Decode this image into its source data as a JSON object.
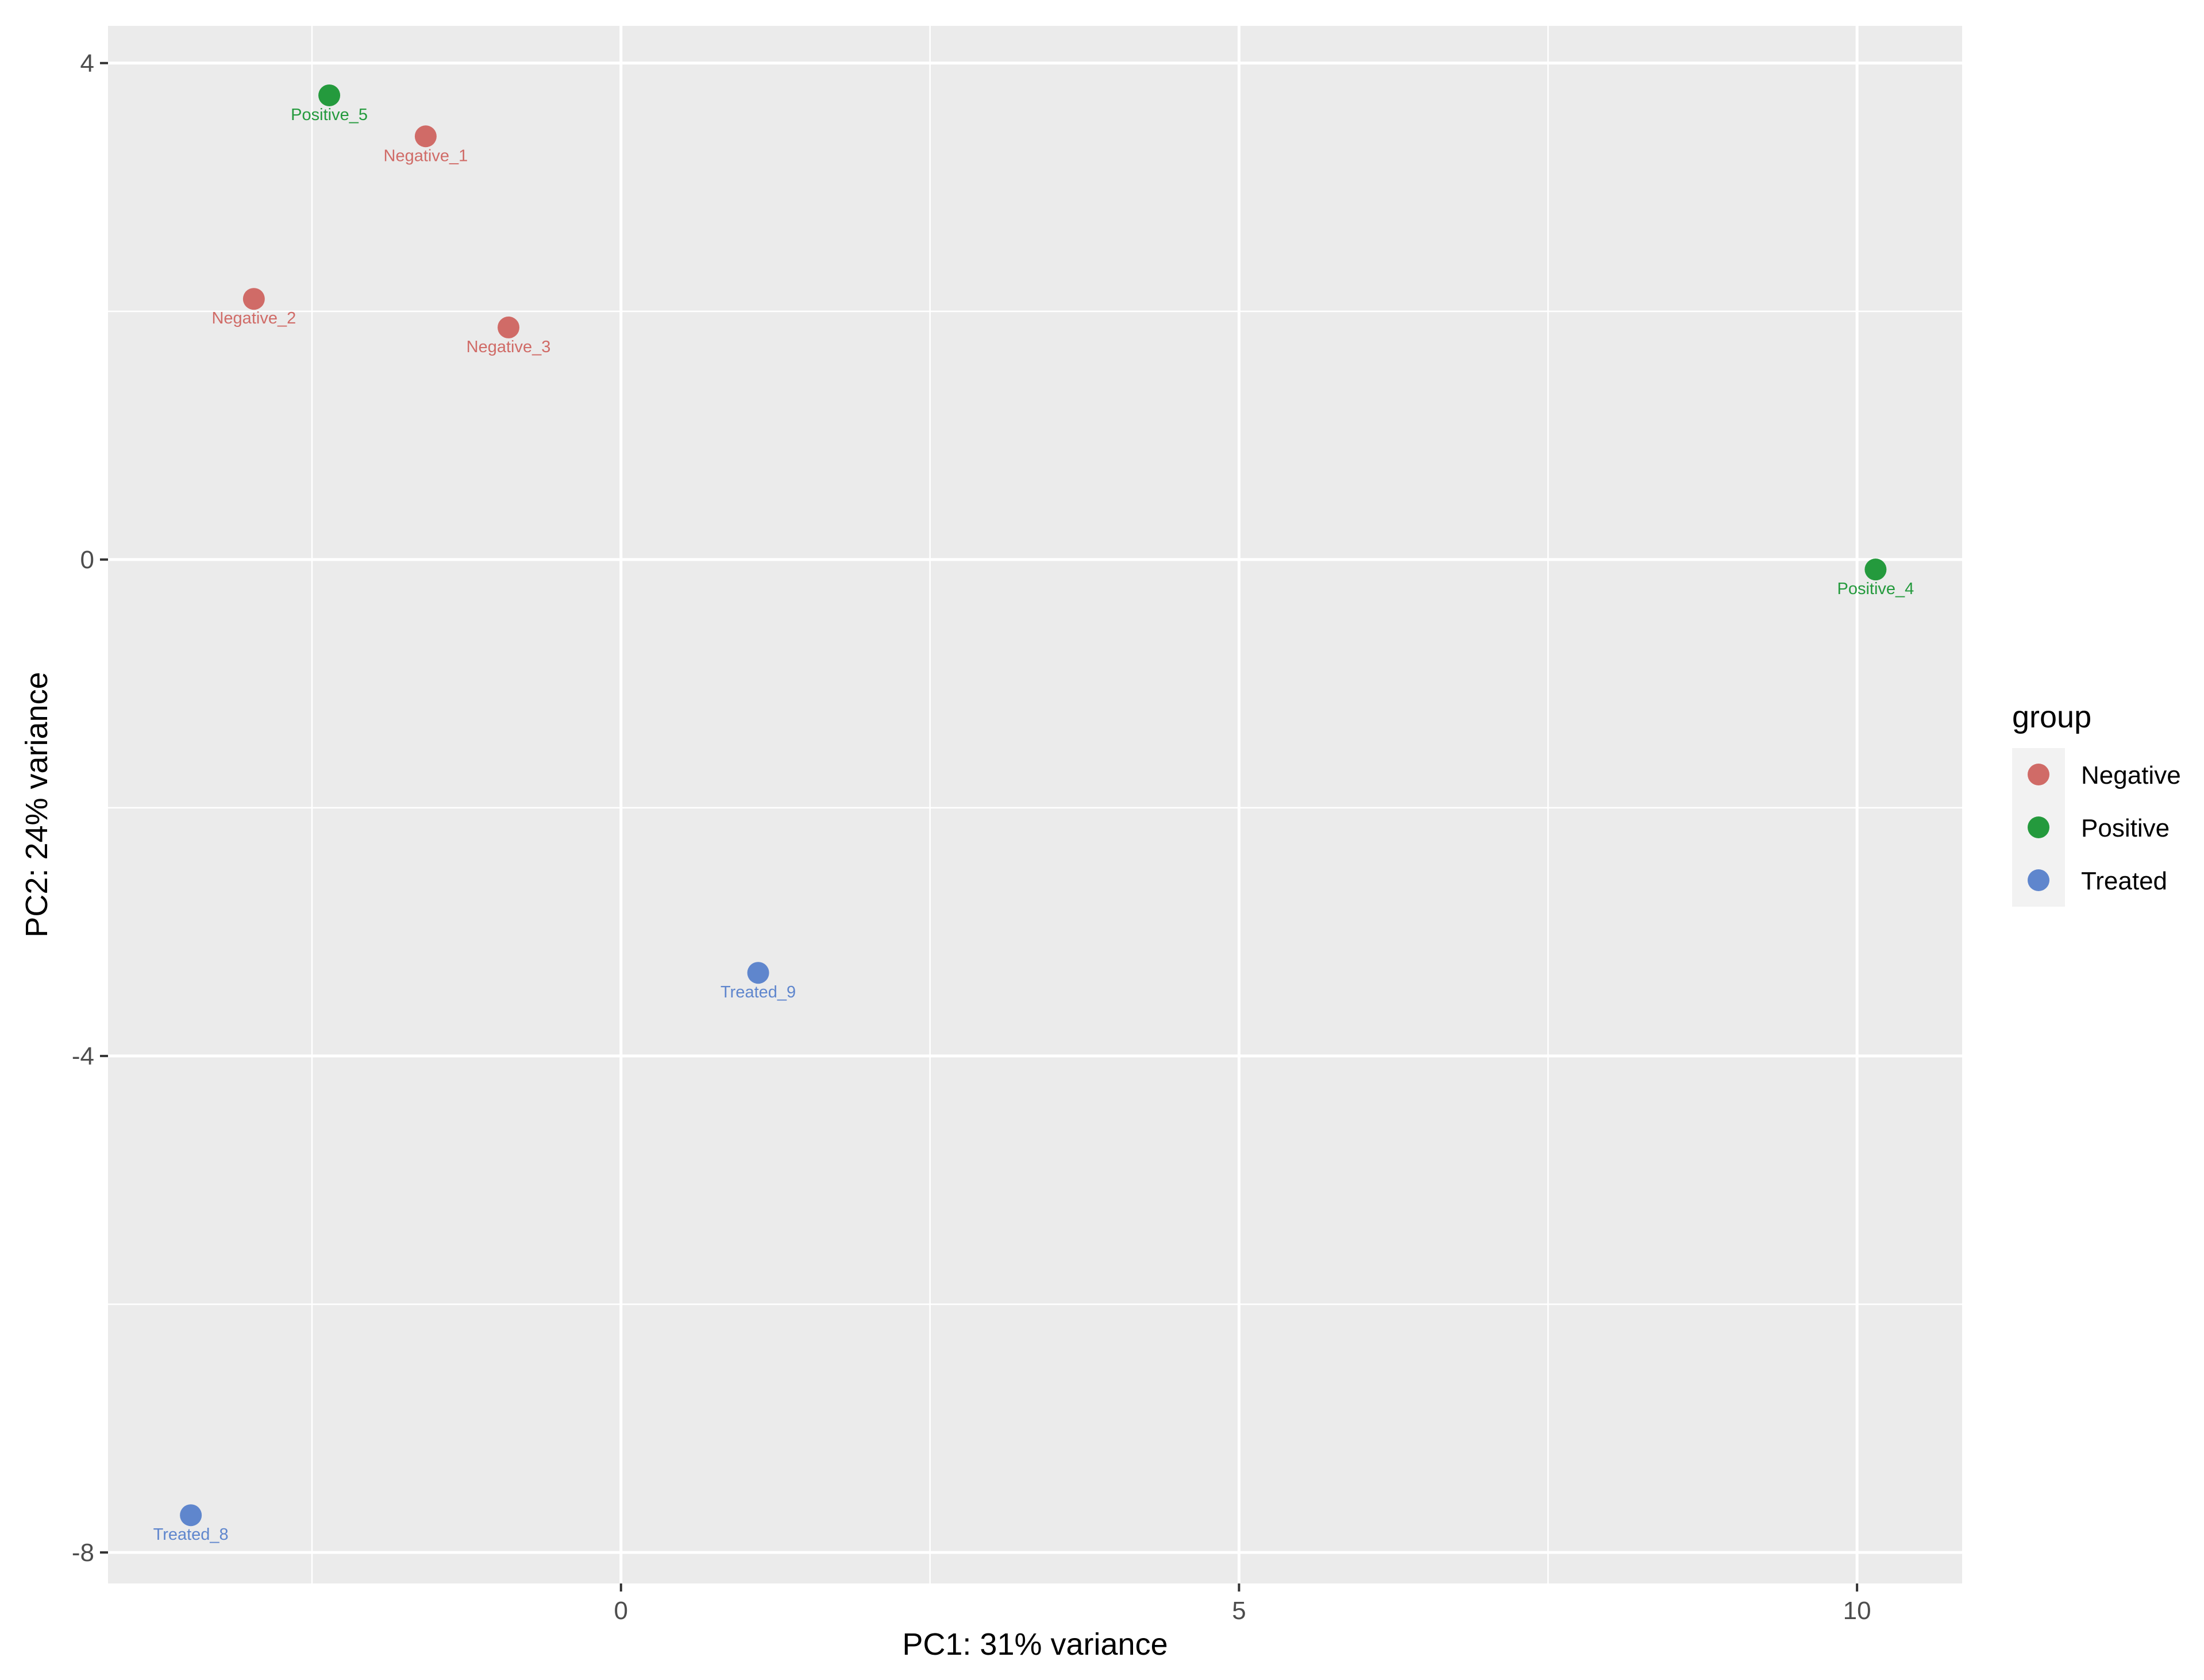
{
  "chart_data": {
    "type": "scatter",
    "title": "",
    "xlabel": "PC1: 31% variance",
    "ylabel": "PC2: 24% variance",
    "xlim": [
      -4.15,
      10.85
    ],
    "ylim": [
      -8.25,
      4.3
    ],
    "x_ticks": [
      0,
      5,
      10
    ],
    "x_tick_labels": [
      "0",
      "5",
      "10"
    ],
    "y_ticks": [
      4,
      0,
      -4,
      -8
    ],
    "y_tick_labels": [
      "4",
      "0",
      "-4",
      "-8"
    ],
    "grid": true,
    "legend": {
      "title": "group",
      "position": "right",
      "entries": [
        "Negative",
        "Positive",
        "Treated"
      ]
    },
    "colors": {
      "Negative": "#d06b67",
      "Positive": "#249a3d",
      "Treated": "#5f86cd"
    },
    "series": [
      {
        "name": "Negative",
        "points": [
          {
            "label": "Negative_1",
            "x": -1.58,
            "y": 3.41
          },
          {
            "label": "Negative_2",
            "x": -2.97,
            "y": 2.1
          },
          {
            "label": "Negative_3",
            "x": -0.91,
            "y": 1.87
          }
        ]
      },
      {
        "name": "Positive",
        "points": [
          {
            "label": "Positive_5",
            "x": -2.36,
            "y": 3.74
          },
          {
            "label": "Positive_4",
            "x": 10.15,
            "y": -0.08
          }
        ]
      },
      {
        "name": "Treated",
        "points": [
          {
            "label": "Treated_9",
            "x": 1.11,
            "y": -3.33
          },
          {
            "label": "Treated_8",
            "x": -3.48,
            "y": -7.7
          }
        ]
      }
    ]
  }
}
